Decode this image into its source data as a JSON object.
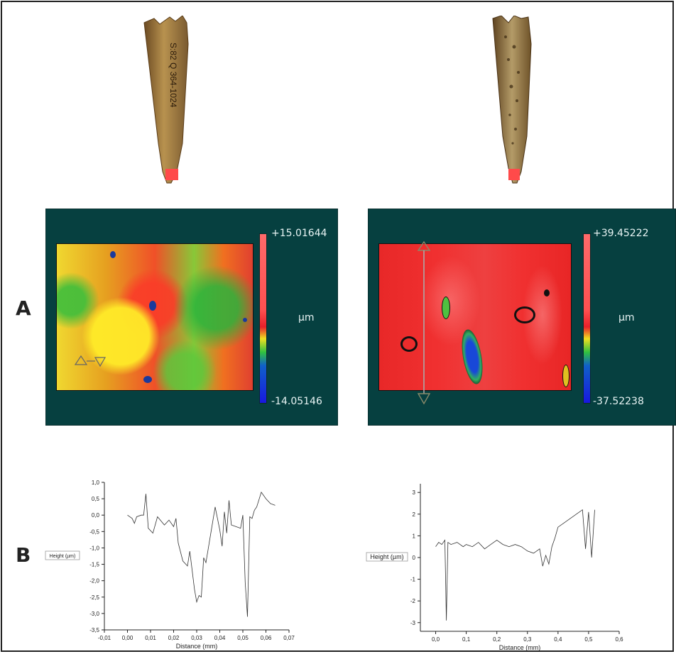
{
  "panel_labels": {
    "a": "A",
    "b": "B"
  },
  "maps": [
    {
      "max_label": "+15.01644",
      "min_label": "-14.05146",
      "unit": "µm"
    },
    {
      "max_label": "+39.45222",
      "min_label": "-37.52238",
      "unit": "µm"
    }
  ],
  "bone_specimens": [
    {
      "inscription": "S:82 Q 364-1024"
    },
    {
      "inscription": ""
    }
  ],
  "chart_data": [
    {
      "type": "line",
      "title": "",
      "xlabel": "Distance (mm)",
      "ylabel": "Height (µm)",
      "xlim": [
        -0.01,
        0.07
      ],
      "ylim": [
        -3.5,
        1.0
      ],
      "x_ticks": [
        "-0,01",
        "0,00",
        "0,01",
        "0,02",
        "0,03",
        "0,04",
        "0,05",
        "0,06",
        "0,07"
      ],
      "y_ticks": [
        "1,0",
        "0,5",
        "0,0",
        "-0,5",
        "-1,0",
        "-1,5",
        "-2,0",
        "-2,5",
        "-3,0",
        "-3,5"
      ],
      "series": [
        {
          "x": [
            0.0,
            0.002,
            0.003,
            0.004,
            0.006,
            0.007,
            0.008,
            0.009,
            0.011,
            0.013,
            0.016,
            0.018,
            0.02,
            0.021,
            0.022,
            0.024,
            0.026,
            0.027,
            0.029,
            0.03,
            0.031,
            0.032,
            0.033,
            0.034,
            0.036,
            0.038,
            0.04,
            0.041,
            0.042,
            0.043,
            0.044,
            0.045,
            0.047,
            0.049,
            0.05,
            0.051,
            0.052,
            0.053,
            0.054,
            0.055,
            0.056,
            0.058,
            0.06,
            0.062,
            0.064
          ],
          "y": [
            0.0,
            -0.1,
            -0.25,
            -0.05,
            0.0,
            0.0,
            0.65,
            -0.4,
            -0.55,
            -0.05,
            -0.3,
            -0.15,
            -0.35,
            -0.1,
            -0.85,
            -1.4,
            -1.55,
            -1.1,
            -2.25,
            -2.65,
            -2.45,
            -2.5,
            -1.3,
            -1.45,
            -0.6,
            0.25,
            -0.45,
            -0.95,
            0.1,
            -0.55,
            0.45,
            -0.3,
            -0.35,
            -0.4,
            0.0,
            -2.05,
            -3.1,
            -0.05,
            -0.1,
            0.15,
            0.25,
            0.7,
            0.5,
            0.35,
            0.3
          ]
        }
      ]
    },
    {
      "type": "line",
      "title": "",
      "xlabel": "Distance (mm)",
      "ylabel": "Height (µm)",
      "xlim": [
        -0.05,
        0.6
      ],
      "ylim": [
        -3.4,
        3.4
      ],
      "x_ticks": [
        "0,0",
        "0,1",
        "0,2",
        "0,3",
        "0,4",
        "0,5",
        "0,6"
      ],
      "y_ticks": [
        "3",
        "2",
        "1",
        "0",
        "-1",
        "-2",
        "-3"
      ],
      "series": [
        {
          "x": [
            0.0,
            0.01,
            0.02,
            0.03,
            0.035,
            0.04,
            0.05,
            0.07,
            0.09,
            0.1,
            0.12,
            0.14,
            0.16,
            0.18,
            0.2,
            0.22,
            0.24,
            0.26,
            0.28,
            0.3,
            0.32,
            0.34,
            0.35,
            0.36,
            0.37,
            0.38,
            0.39,
            0.4,
            0.42,
            0.44,
            0.46,
            0.48,
            0.49,
            0.5,
            0.51,
            0.52
          ],
          "y": [
            0.5,
            0.7,
            0.6,
            0.8,
            -2.9,
            0.7,
            0.6,
            0.7,
            0.5,
            0.6,
            0.5,
            0.7,
            0.4,
            0.6,
            0.8,
            0.6,
            0.5,
            0.6,
            0.5,
            0.3,
            0.2,
            0.4,
            -0.4,
            0.1,
            -0.3,
            0.5,
            0.9,
            1.4,
            1.6,
            1.8,
            2.0,
            2.2,
            0.4,
            2.1,
            0.0,
            2.2
          ]
        }
      ]
    }
  ]
}
